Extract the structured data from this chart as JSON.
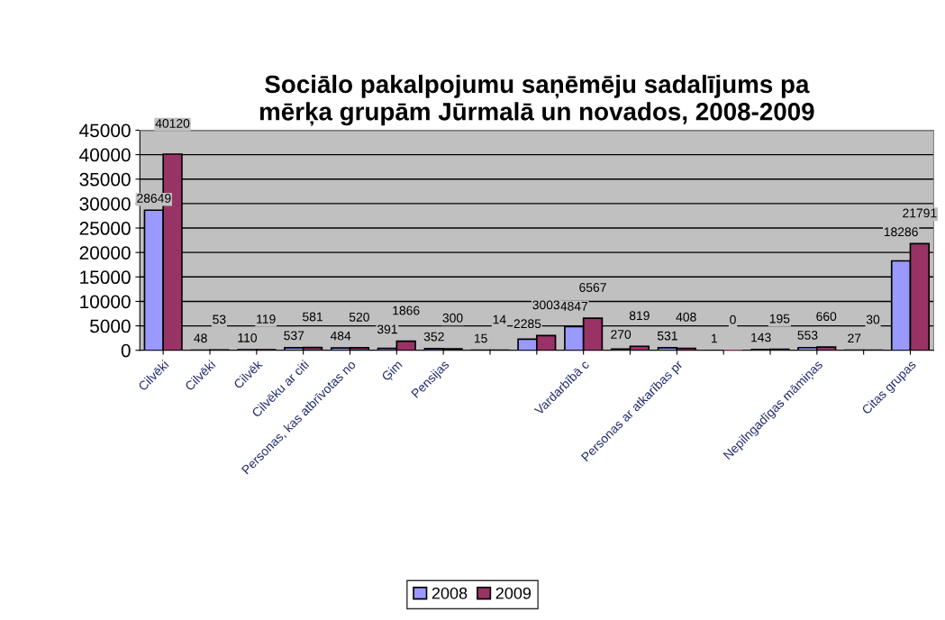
{
  "chart_data": {
    "type": "bar",
    "title": "Sociālo pakalpojumu saņēmēju sadalījums pa\nmērķa grupām Jūrmalā un novados, 2008-2009",
    "categories": [
      "Cilvēki",
      "Cilvēki",
      "Cilvēk",
      "Cilvēku ar citi",
      "Personas, kas atbrīvotas no",
      "Ģim",
      "Pensijas",
      null,
      null,
      "Vardarbībā c",
      null,
      "Personas ar atkarības pr",
      null,
      null,
      "Nepilngadīgas māmiņas",
      null,
      "Citas grupas"
    ],
    "series": [
      {
        "name": "2008",
        "color": "#9999ff",
        "values": [
          28649,
          48,
          110,
          537,
          484,
          391,
          352,
          15,
          2285,
          4847,
          270,
          531,
          1,
          143,
          553,
          27,
          18286
        ]
      },
      {
        "name": "2009",
        "color": "#993366",
        "values": [
          40120,
          53,
          119,
          581,
          520,
          1866,
          300,
          14,
          3003,
          6567,
          819,
          408,
          0,
          195,
          660,
          30,
          21791
        ]
      }
    ],
    "ylim": [
      0,
      45000
    ],
    "yticks": [
      0,
      5000,
      10000,
      15000,
      20000,
      25000,
      30000,
      35000,
      40000,
      45000
    ],
    "grid": "y",
    "legend": "bottom",
    "data_labels": true
  }
}
